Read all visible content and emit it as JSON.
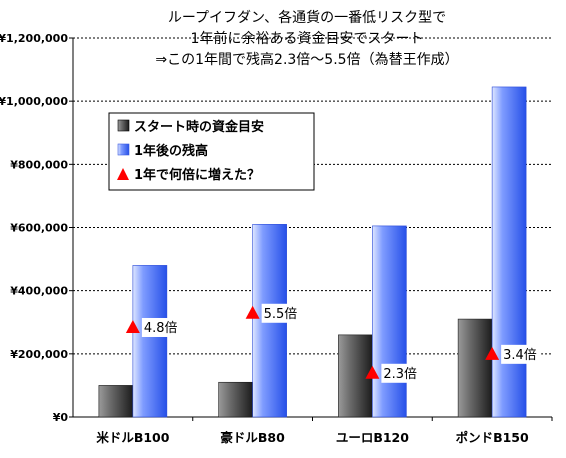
{
  "chart_data": {
    "type": "bar",
    "title_lines": [
      "ループイフダン、各通貨の一番低リスク型で",
      "1年前に余裕ある資金目安でスタート",
      "⇒この1年間で残高2.3倍～5.5倍（為替王作成）"
    ],
    "categories": [
      "米ドルB100",
      "豪ドルB80",
      "ユーロB120",
      "ポンドB150"
    ],
    "series": [
      {
        "name": "スタート時の資金目安",
        "values": [
          100000,
          110000,
          260000,
          310000
        ],
        "color": "#3a3a3a"
      },
      {
        "name": "1年後の残高",
        "values": [
          480000,
          610000,
          605000,
          1045000
        ],
        "color": "#3f6ff5"
      }
    ],
    "markers": {
      "name": "1年で何倍に増えた？",
      "color": "#ff0000",
      "labels": [
        "4.8倍",
        "5.5倍",
        "2.3倍",
        "3.4倍"
      ],
      "positions": [
        285000,
        330000,
        140000,
        200000
      ]
    },
    "ylim": [
      0,
      1200000
    ],
    "yticks": [
      0,
      200000,
      400000,
      600000,
      800000,
      1000000,
      1200000
    ],
    "ytick_labels": [
      "¥0",
      "¥200,000",
      "¥400,000",
      "¥600,000",
      "¥800,000",
      "¥1,000,000",
      "¥1,200,000"
    ],
    "grid": true,
    "legend_position": "upper-left"
  }
}
